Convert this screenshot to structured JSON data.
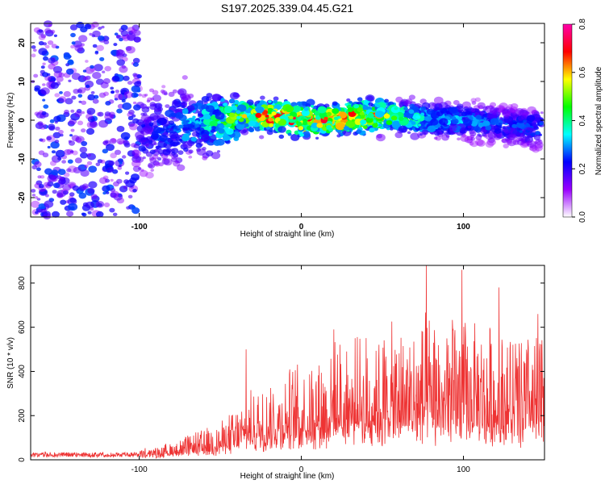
{
  "figure_title": "S197.2025.339.04.45.G21",
  "chart_data": [
    {
      "type": "heatmap",
      "name": "spectrogram",
      "xlabel": "Height of straight line (km)",
      "ylabel": "Frequency (Hz)",
      "xlim": [
        -167,
        150
      ],
      "ylim": [
        -25,
        25
      ],
      "xticks": [
        -100,
        0,
        100
      ],
      "yticks": [
        -20,
        -10,
        0,
        10,
        20
      ],
      "colorbar": {
        "label": "Normalized spectral amplitude",
        "range": [
          0.0,
          0.8
        ],
        "ticks": [
          "0.0",
          "0.2",
          "0.4",
          "0.6",
          "0.8"
        ],
        "stops": [
          "#ffffff",
          "#9900ff",
          "#0000ff",
          "#00ffff",
          "#00ff00",
          "#ffff00",
          "#ff0000",
          "#ff00aa"
        ]
      },
      "band": {
        "description_points_x": [
          -100,
          -80,
          -60,
          -40,
          -20,
          0,
          20,
          40,
          60,
          80,
          100,
          120,
          140
        ],
        "center_freq_hz": [
          -4,
          -2,
          -1,
          1,
          1,
          0,
          0,
          1,
          1,
          0,
          0,
          -1,
          -2
        ],
        "peak_amplitude": [
          0.2,
          0.25,
          0.4,
          0.55,
          0.8,
          0.8,
          0.75,
          0.8,
          0.5,
          0.35,
          0.3,
          0.25,
          0.25
        ]
      }
    },
    {
      "type": "line",
      "name": "snr",
      "xlabel": "Height of straight line (km)",
      "ylabel": "SNR (10 * v/v)",
      "xlim": [
        -167,
        150
      ],
      "ylim": [
        0,
        880
      ],
      "xticks": [
        -100,
        0,
        100
      ],
      "yticks": [
        0,
        200,
        400,
        600,
        800
      ],
      "color": "#ee3333",
      "envelope_x": [
        -167,
        -120,
        -90,
        -70,
        -50,
        -40,
        -30,
        -20,
        -10,
        0,
        20,
        40,
        60,
        80,
        100,
        120,
        150
      ],
      "envelope_peak": [
        40,
        45,
        60,
        120,
        180,
        260,
        330,
        400,
        430,
        480,
        560,
        600,
        650,
        700,
        680,
        650,
        620
      ],
      "envelope_base": [
        20,
        20,
        25,
        40,
        60,
        80,
        100,
        110,
        120,
        140,
        160,
        170,
        180,
        190,
        170,
        160,
        160
      ],
      "spikes": [
        {
          "x": -34,
          "y": 500
        },
        {
          "x": 20,
          "y": 590
        },
        {
          "x": 77,
          "y": 880
        },
        {
          "x": 99,
          "y": 860
        },
        {
          "x": 122,
          "y": 780
        },
        {
          "x": 146,
          "y": 660
        }
      ]
    }
  ]
}
